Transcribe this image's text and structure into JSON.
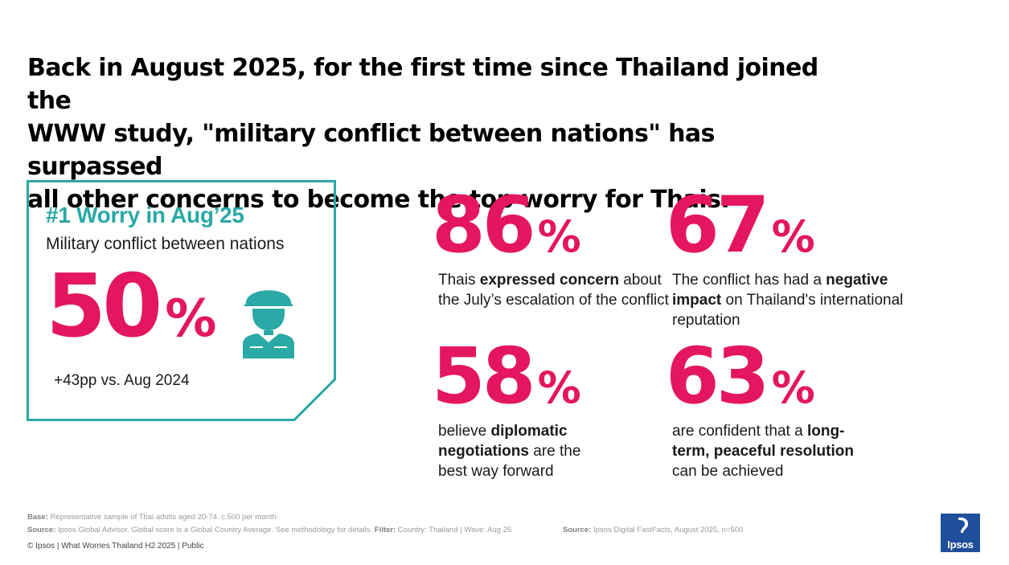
{
  "headline": [
    "Back in August 2025, for the first time since Thailand joined the",
    "WWW study, \"military conflict between nations\" has surpassed",
    "all other concerns to become the top worry for Thais."
  ],
  "card": {
    "title": "#1 Worry in Aug’25",
    "subtitle": "Military conflict between nations",
    "value": "50",
    "unit": "%",
    "change": "+43pp vs. Aug 2024",
    "icon": "soldier-icon",
    "accent": "#2aa9a6"
  },
  "stats": [
    {
      "value": "86",
      "unit": "%",
      "pre": "Thais ",
      "bold": "expressed concern",
      "post": " about the July’s escalation of the conflict"
    },
    {
      "value": "67",
      "unit": "%",
      "pre": "The conflict has had a ",
      "bold": "negative impact",
      "post": " on Thailand's international reputation"
    },
    {
      "value": "58",
      "unit": "%",
      "pre": "believe ",
      "bold": "diplomatic negotiations",
      "post": " are the best way forward"
    },
    {
      "value": "63",
      "unit": "%",
      "pre": "are confident that a ",
      "bold": "long-term, peaceful resolution",
      "post": " can be achieved"
    }
  ],
  "footer": {
    "base_label": "Base:",
    "base_text": " Representative sample of Thai adults aged 20-74. c.500 per month",
    "source_label": "Source:",
    "source_text": " Ipsos Global Advisor. Global score is a Global Country Average. See methodology for details. ",
    "filter_label": "Filter:",
    "filter_text": " Country: Thailand | Wave: Aug 25",
    "source2_label": "Source:",
    "source2_text": " Ipsos Digital FastFacts, August 2025, n=500",
    "copyright": "© Ipsos | What Worries Thailand H2 2025 | Public"
  },
  "logo": {
    "text": "Ipsos",
    "color": "#1f4e9a"
  },
  "colors": {
    "highlight": "#e4165f",
    "teal": "#2aa9a6"
  }
}
